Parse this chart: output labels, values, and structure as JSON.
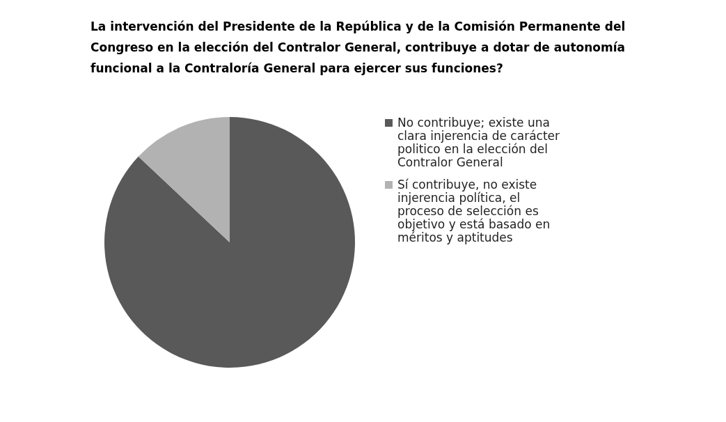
{
  "chart_data": {
    "type": "pie",
    "title": "La intervención del Presidente de la República y de la Comisión Permanente del Congreso en la elección del Contralor General, contribuye a dotar de autonomía funcional a  la Contraloría General para ejercer sus funciones?",
    "categories": [
      "No contribuye; existe una clara injerencia de carácter politico en la elección del Contralor General",
      "Sí contribuye, no existe injerencia política, el proceso de selección es objetivo y está basado en méritos y aptitudes"
    ],
    "values": [
      87,
      13
    ],
    "colors": [
      "#595959",
      "#b2b2b2"
    ],
    "legend": "right"
  }
}
